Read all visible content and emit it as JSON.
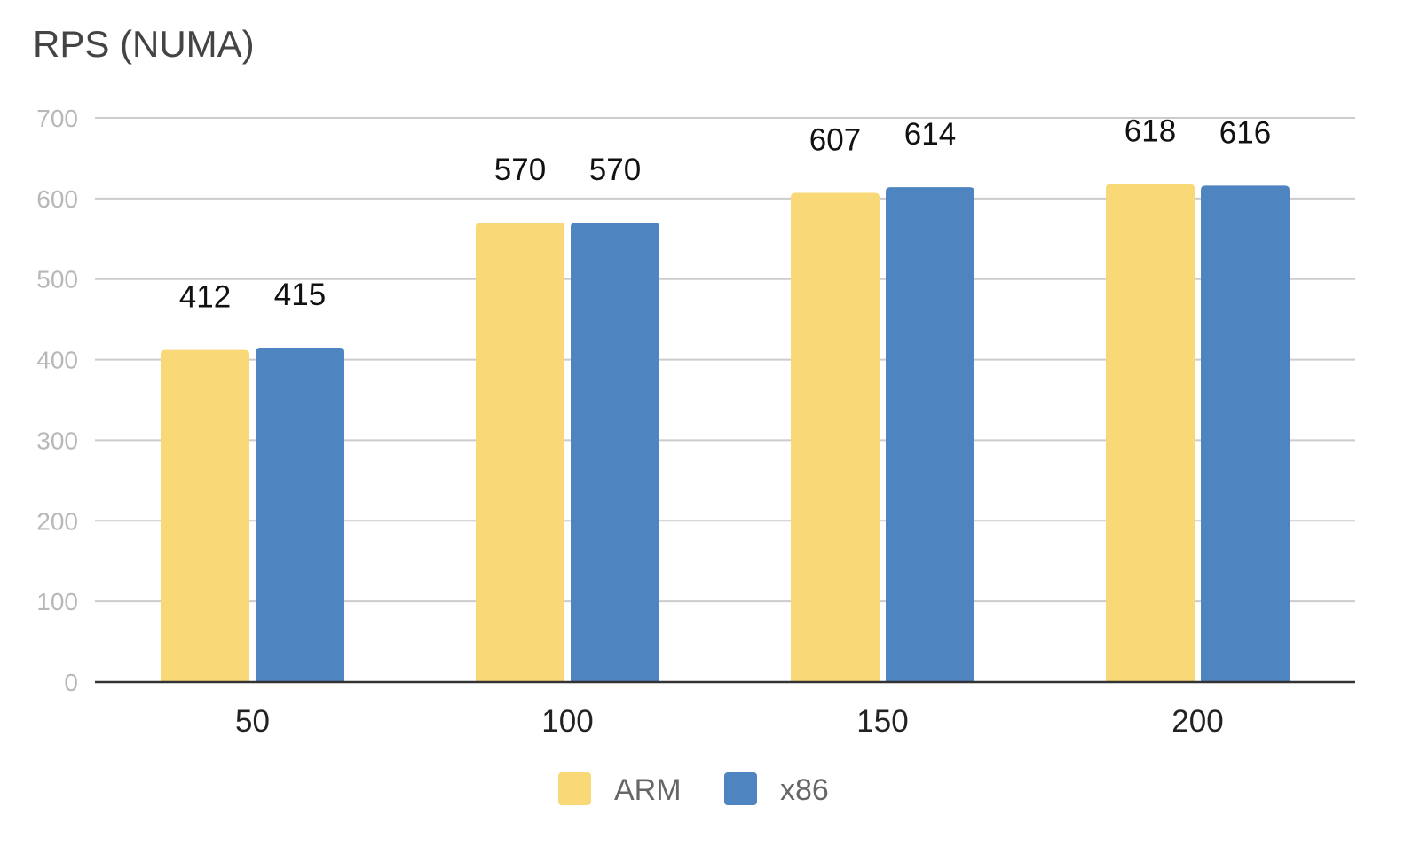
{
  "chart_data": {
    "type": "bar",
    "title": "RPS (NUMA)",
    "categories": [
      "50",
      "100",
      "150",
      "200"
    ],
    "series": [
      {
        "name": "ARM",
        "color": "#f9d877",
        "values": [
          412,
          570,
          607,
          618
        ]
      },
      {
        "name": "x86",
        "color": "#4e84c0",
        "values": [
          415,
          570,
          614,
          616
        ]
      }
    ],
    "ylim": [
      0,
      700
    ],
    "yticks": [
      0,
      100,
      200,
      300,
      400,
      500,
      600,
      700
    ],
    "grid": true,
    "data_labels": true,
    "legend_position": "bottom"
  }
}
